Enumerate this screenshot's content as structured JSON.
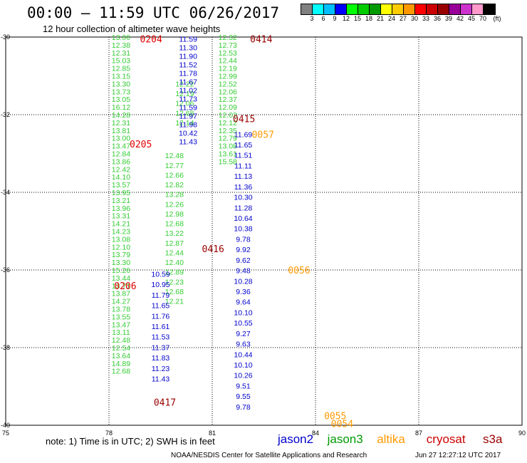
{
  "title": "00:00 – 11:59 UTC 06/26/2017",
  "subtitle": "12 hour collection of altimeter wave heights",
  "colorbar": {
    "unit": "(ft)",
    "labels": [
      "3",
      "6",
      "9",
      "12",
      "15",
      "18",
      "21",
      "24",
      "27",
      "30",
      "33",
      "36",
      "39",
      "42",
      "45",
      "70"
    ],
    "colors": [
      "#808080",
      "#00ffff",
      "#00bfff",
      "#0000ff",
      "#00ff00",
      "#00cc00",
      "#009900",
      "#ffff00",
      "#ffcc00",
      "#ff9900",
      "#ff0000",
      "#cc0000",
      "#990000",
      "#990099",
      "#cc33cc",
      "#ff99cc",
      "#000000"
    ]
  },
  "axes": {
    "lon_ticks": [
      "75",
      "78",
      "81",
      "84",
      "87",
      "90"
    ],
    "lat_ticks": [
      "-30",
      "-32",
      "-34",
      "-36",
      "-38",
      "-40"
    ]
  },
  "tracks": [
    {
      "satellite": "jason3",
      "color": "#33cc33",
      "lon": 78.35,
      "lat_start": -30.0,
      "lat_step": 0.2,
      "values": [
        "13.00",
        "12.38",
        "12.31",
        "15.03",
        "12.85",
        "13.15",
        "13.30",
        "13.73",
        "13.05",
        "16.12",
        "14.28",
        "12.31",
        "13.81",
        "13.00",
        "13.47",
        "12.84",
        "13.86",
        "12.42",
        "14.10",
        "13.57",
        "13.95",
        "13.21",
        "13.96",
        "13.31",
        "14.21",
        "14.23",
        "13.08",
        "12.10",
        "13.79",
        "13.30",
        "15.26",
        "13.44",
        "13.71",
        "13.87",
        "14.27",
        "13.78",
        "13.55",
        "13.47",
        "13.11",
        "12.48",
        "12.54",
        "13.64",
        "14.89",
        "12.68"
      ]
    },
    {
      "satellite": "jason3",
      "color": "#33cc33",
      "lon": 81.45,
      "lat_start": -30.0,
      "lat_step": 0.2,
      "values": [
        "12.32",
        "12.73",
        "12.53",
        "12.44",
        "12.19",
        "12.99",
        "12.52",
        "12.06",
        "12.37",
        "12.09",
        "12.02",
        "12.12",
        "12.35",
        "12.79",
        "13.08",
        "13.61",
        "15.58"
      ]
    },
    {
      "satellite": "jason3",
      "color": "#33cc33",
      "lon": 80.2,
      "lat_start": -31.2,
      "lat_step": 0.25,
      "values": [
        "12.22",
        "12.19",
        "12.06",
        "12.68",
        "12.14"
      ]
    },
    {
      "satellite": "jason3",
      "color": "#33cc33",
      "lon": 79.9,
      "lat_start": -33.05,
      "lat_step": 0.25,
      "values": [
        "12.48",
        "12.77",
        "12.66",
        "12.82",
        "13.28",
        "12.26",
        "12.98",
        "12.68",
        "13.22",
        "12.87",
        "12.44",
        "12.40",
        "12.89",
        "12.23",
        "12.68",
        "12.21"
      ]
    },
    {
      "satellite": "jason2",
      "color": "#0000cc",
      "lon": 80.3,
      "lat_start": -30.05,
      "lat_step": 0.22,
      "values": [
        "11.59",
        "11.30",
        "11.90",
        "11.52",
        "11.78",
        "11.67",
        "11.02",
        "11.73",
        "11.59",
        "11.97",
        "11.98",
        "10.42",
        "11.43"
      ]
    },
    {
      "satellite": "jason2",
      "color": "#0000cc",
      "lon": 81.9,
      "lat_start": -32.5,
      "lat_step": 0.27,
      "values": [
        "11.69",
        "11.65",
        "11.51",
        "11.11",
        "11.13",
        "11.36",
        "10.30",
        "11.28",
        "10.64",
        "10.38",
        "9.78",
        "9.92",
        "9.62",
        "9.48",
        "10.28",
        "9.36",
        "9.64",
        "10.10",
        "10.55",
        "9.27",
        "9.63",
        "10.44",
        "10.10",
        "10.26",
        "9.51",
        "9.55",
        "9.78"
      ]
    },
    {
      "satellite": "jason2",
      "color": "#0000cc",
      "lon": 79.5,
      "lat_start": -36.1,
      "lat_step": 0.27,
      "values": [
        "10.59",
        "10.95",
        "11.79",
        "11.65",
        "11.76",
        "11.61",
        "11.53",
        "11.37",
        "11.83",
        "11.23",
        "11.43"
      ]
    }
  ],
  "track_times": [
    {
      "label": "0204",
      "color": "#e00000",
      "lon": 78.9,
      "lat": -30.05
    },
    {
      "label": "0205",
      "color": "#e00000",
      "lon": 78.6,
      "lat": -32.75
    },
    {
      "label": "0206",
      "color": "#e00000",
      "lon": 78.15,
      "lat": -36.4
    },
    {
      "label": "0414",
      "color": "#990000",
      "lon": 82.1,
      "lat": -30.05
    },
    {
      "label": "0415",
      "color": "#990000",
      "lon": 81.6,
      "lat": -32.1
    },
    {
      "label": "0416",
      "color": "#990000",
      "lon": 80.7,
      "lat": -35.45
    },
    {
      "label": "0417",
      "color": "#990000",
      "lon": 79.3,
      "lat": -39.4
    },
    {
      "label": "0057",
      "color": "#ff9900",
      "lon": 82.15,
      "lat": -32.5
    },
    {
      "label": "0056",
      "color": "#ff9900",
      "lon": 83.2,
      "lat": -36.0
    },
    {
      "label": "0055",
      "color": "#ff9900",
      "lon": 84.25,
      "lat": -39.75
    },
    {
      "label": "0054",
      "color": "#ff9900",
      "lon": 84.45,
      "lat": -39.95
    }
  ],
  "note": "note:  1) Time is in UTC;  2) SWH is in feet",
  "legend": [
    {
      "label": "jason2",
      "color": "#0000cc"
    },
    {
      "label": "jason3",
      "color": "#009900"
    },
    {
      "label": "altika",
      "color": "#ff9900"
    },
    {
      "label": "cryosat",
      "color": "#cc0000"
    },
    {
      "label": "s3a",
      "color": "#990000"
    }
  ],
  "credit": "NOAA/NESDIS Center for Satellite Applications and Research",
  "timestamp": "Jun 27 12:27:12 UTC 2017"
}
